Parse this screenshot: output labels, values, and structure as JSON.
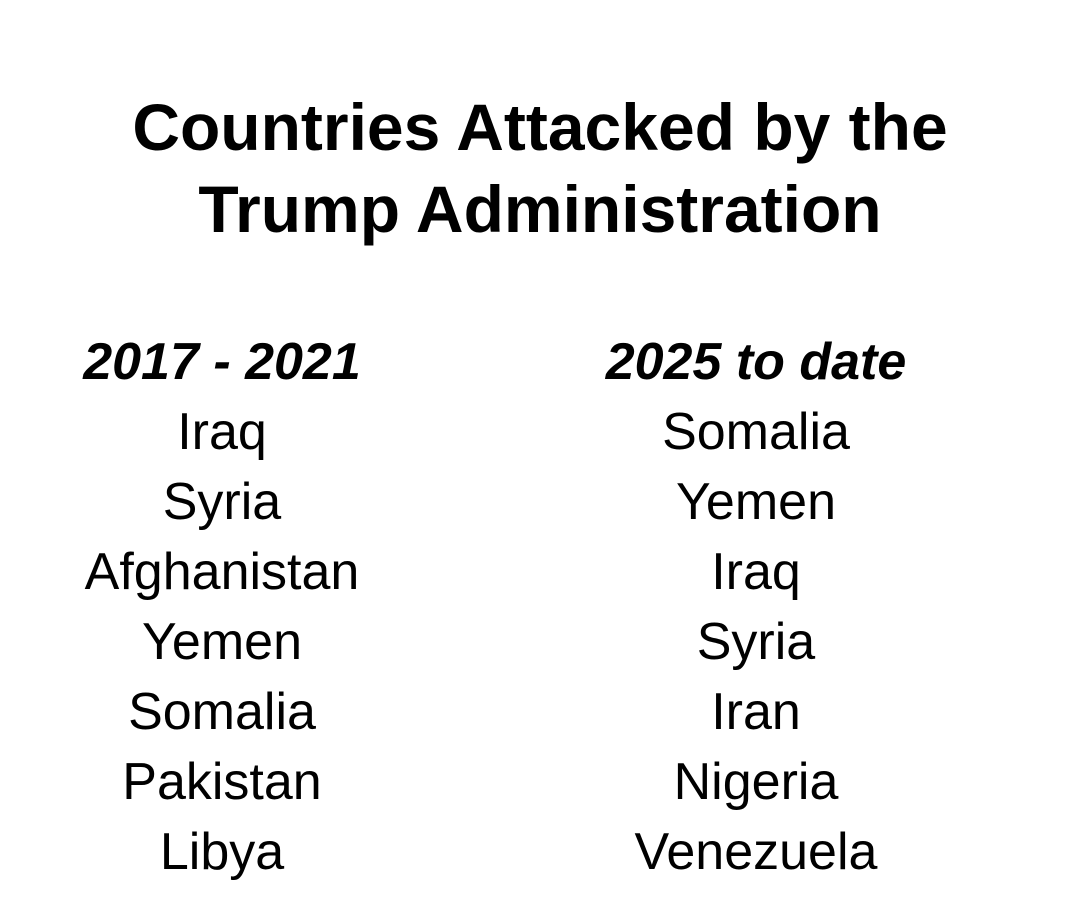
{
  "page": {
    "background_color": "#ffffff",
    "text_color": "#000000"
  },
  "title": {
    "line1": "Countries Attacked by the",
    "line2": "Trump Administration"
  },
  "columns": [
    {
      "header": "2017 - 2021",
      "items": [
        "Iraq",
        "Syria",
        "Afghanistan",
        "Yemen",
        "Somalia",
        "Pakistan",
        "Libya"
      ]
    },
    {
      "header": "2025 to date",
      "items": [
        "Somalia",
        "Yemen",
        "Iraq",
        "Syria",
        "Iran",
        "Nigeria",
        "Venezuela"
      ]
    }
  ]
}
